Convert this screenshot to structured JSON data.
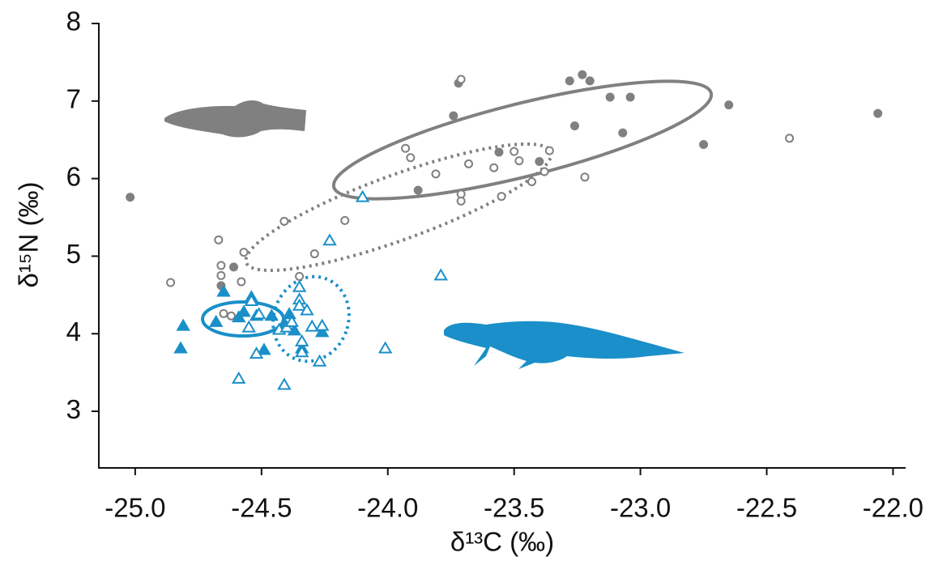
{
  "chart_data": {
    "type": "scatter",
    "x_label": "δ¹³C (‰)",
    "y_label": "δ¹⁵N (‰)",
    "xlim": [
      -25.144,
      -21.95
    ],
    "ylim": [
      2.27,
      8
    ],
    "xticks": [
      {
        "value": -25,
        "label": "-25.0"
      },
      -24.5,
      {
        "value": -24,
        "label": "-24.0"
      },
      -23.5,
      {
        "value": -23,
        "label": "-23.0"
      },
      -22.5,
      {
        "value": -22,
        "label": "-22.0"
      }
    ],
    "yticks": [
      3,
      4,
      5,
      6,
      7,
      8
    ],
    "series": [
      {
        "color": "#808080",
        "marker": "circle",
        "filled": true,
        "x": [
          -25.02,
          -23.72,
          -23.74,
          -23.88,
          -23.56,
          -23.4,
          -23.28,
          -23.23,
          -23.2,
          -23.12,
          -23.04,
          -23.26,
          -23.07,
          -22.75,
          -22.65,
          -22.06,
          -24.66,
          -24.61
        ],
        "y": [
          5.76,
          7.23,
          6.81,
          5.85,
          6.34,
          6.22,
          7.26,
          7.34,
          7.26,
          7.05,
          7.05,
          6.68,
          6.59,
          6.44,
          6.95,
          6.84,
          4.62,
          4.86
        ]
      },
      {
        "color": "#808080",
        "marker": "circle",
        "filled": false,
        "x": [
          -24.86,
          -24.67,
          -24.66,
          -24.66,
          -24.58,
          -24.57,
          -24.65,
          -24.62,
          -24.41,
          -24.35,
          -24.29,
          -24.17,
          -23.93,
          -23.91,
          -23.81,
          -23.71,
          -23.71,
          -23.71,
          -23.68,
          -23.58,
          -23.55,
          -23.5,
          -23.48,
          -23.43,
          -23.38,
          -23.36,
          -23.22,
          -22.41
        ],
        "y": [
          4.66,
          5.21,
          4.88,
          4.75,
          4.67,
          5.05,
          4.26,
          4.23,
          5.45,
          4.74,
          5.03,
          5.46,
          6.39,
          6.27,
          6.06,
          7.28,
          5.8,
          5.71,
          6.19,
          6.14,
          5.77,
          6.35,
          6.23,
          5.96,
          6.09,
          6.36,
          6.02,
          6.52
        ]
      },
      {
        "color": "#1a8fc9",
        "marker": "triangle",
        "filled": true,
        "x": [
          -24.81,
          -24.82,
          -24.65,
          -24.68,
          -24.59,
          -24.57,
          -24.54,
          -24.52,
          -24.49,
          -24.46,
          -24.41,
          -24.39,
          -24.37,
          -24.34,
          -24.26
        ],
        "y": [
          4.1,
          3.81,
          4.54,
          4.15,
          4.21,
          4.28,
          4.47,
          4.23,
          3.79,
          4.23,
          4.13,
          4.25,
          4.04,
          3.81,
          4.02
        ]
      },
      {
        "color": "#1a8fc9",
        "marker": "triangle",
        "filled": false,
        "x": [
          -24.1,
          -24.23,
          -23.79,
          -24.35,
          -24.35,
          -24.35,
          -24.32,
          -24.54,
          -24.51,
          -24.55,
          -24.43,
          -24.4,
          -24.38,
          -24.3,
          -24.26,
          -24.34,
          -24.34,
          -24.52,
          -24.27,
          -24.59,
          -24.41,
          -24.01
        ],
        "y": [
          5.76,
          5.2,
          4.75,
          4.6,
          4.44,
          4.36,
          4.3,
          4.42,
          4.25,
          4.08,
          4.05,
          4.08,
          4.15,
          4.09,
          4.1,
          3.9,
          3.76,
          3.74,
          3.64,
          3.42,
          3.34,
          3.81
        ]
      }
    ]
  }
}
